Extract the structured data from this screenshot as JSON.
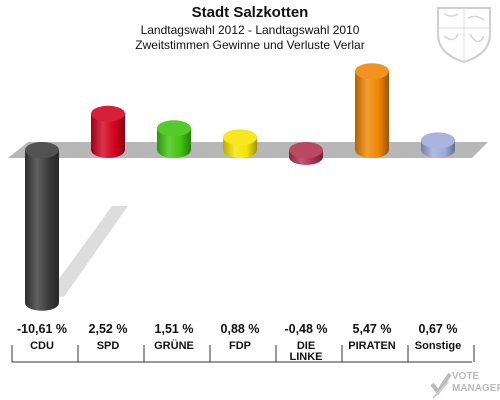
{
  "header": {
    "title": "Stadt Salzkotten",
    "subtitle": "Landtagswahl 2012 - Landtagswahl 2010",
    "subtitle2": "Zweitstimmen Gewinne und Verluste Verlar"
  },
  "watermark": {
    "line1": "VOTE",
    "line2": "MANAGER"
  },
  "crest_icon": "coat-of-arms-icon",
  "chart_data": {
    "type": "bar",
    "categories": [
      "CDU",
      "SPD",
      "GRÜNE",
      "FDP",
      "DIE LINKE",
      "PIRATEN",
      "Sonstige"
    ],
    "values": [
      -10.61,
      2.52,
      1.51,
      0.88,
      -0.48,
      5.47,
      0.67
    ],
    "value_labels": [
      "-10,61 %",
      "2,52 %",
      "1,51 %",
      "0,88 %",
      "-0,48 %",
      "5,47 %",
      "0,67 %"
    ],
    "colors": [
      "#3a3a3a",
      "#d2001e",
      "#3ec40e",
      "#f5e400",
      "#b0304e",
      "#f08400",
      "#9fa9db"
    ],
    "title": "Stadt Salzkotten",
    "xlabel": "",
    "ylabel": "",
    "ylim": [
      -12,
      7
    ],
    "grid": false
  }
}
